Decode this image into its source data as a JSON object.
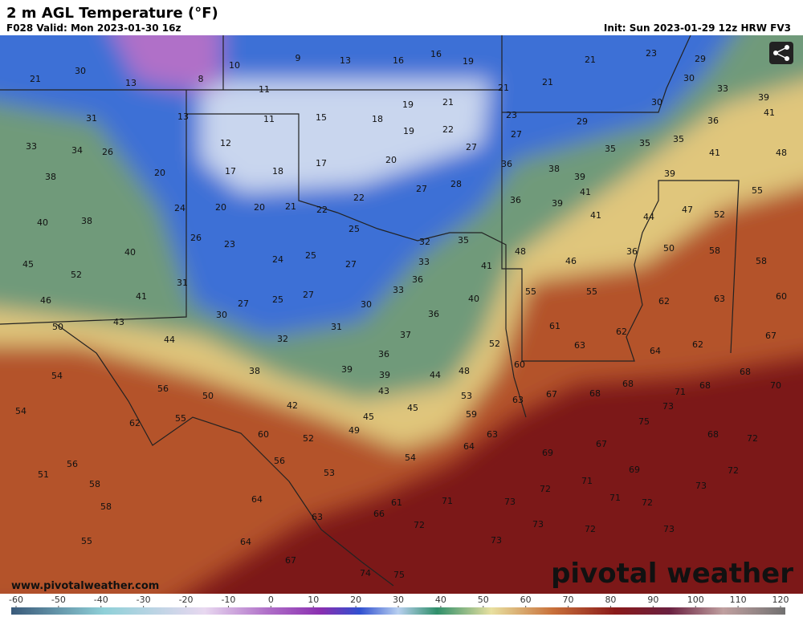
{
  "header": {
    "title": "2 m AGL Temperature (°F)",
    "valid": "F028 Valid: Mon 2023-01-30 16z",
    "init": "Init: Sun 2023-01-29 12z HRW FV3"
  },
  "footer": {
    "website": "www.pivotalweather.com",
    "logo": "pivotal weather"
  },
  "colorbar": {
    "lim": [
      -60,
      120
    ],
    "ticks": [
      -60,
      -50,
      -40,
      -30,
      -20,
      -10,
      0,
      10,
      20,
      30,
      40,
      50,
      60,
      70,
      80,
      90,
      100,
      110,
      120
    ]
  },
  "labels": [
    21,
    30,
    13,
    8,
    10,
    9,
    13,
    16,
    16,
    19,
    21,
    23,
    29,
    30,
    33,
    39,
    41,
    21,
    21,
    11,
    30,
    36,
    48,
    41,
    31,
    13,
    11,
    15,
    18,
    19,
    21,
    23,
    29,
    27,
    19,
    22,
    35,
    35,
    35,
    33,
    34,
    26,
    12,
    27,
    38,
    20,
    17,
    18,
    17,
    20,
    36,
    38,
    39,
    39,
    55,
    28,
    27,
    41,
    22,
    36,
    39,
    41,
    44,
    47,
    52,
    40,
    38,
    24,
    20,
    20,
    21,
    22,
    25,
    35,
    32,
    50,
    58,
    26,
    23,
    24,
    25,
    27,
    33,
    41,
    48,
    46,
    36,
    45,
    52,
    40,
    36,
    58,
    31,
    33,
    40,
    55,
    55,
    62,
    63,
    60,
    46,
    41,
    27,
    25,
    27,
    30,
    36,
    50,
    43,
    30,
    31,
    61,
    62,
    67,
    44,
    32,
    37,
    52,
    63,
    62,
    64,
    36,
    60,
    54,
    38,
    39,
    39,
    44,
    48,
    68,
    68,
    68,
    70,
    56,
    50,
    43,
    53,
    67,
    68,
    71,
    73,
    54,
    42,
    45,
    63,
    59,
    62,
    55,
    45,
    49,
    75,
    68,
    72,
    60,
    52,
    63,
    64,
    67,
    69,
    72,
    54,
    56,
    56,
    51,
    53,
    69,
    58,
    71,
    73,
    72,
    71,
    72,
    64,
    61,
    71,
    73,
    58,
    63,
    66,
    72,
    73,
    72,
    73,
    55,
    64,
    73,
    67,
    74,
    75
  ]
}
